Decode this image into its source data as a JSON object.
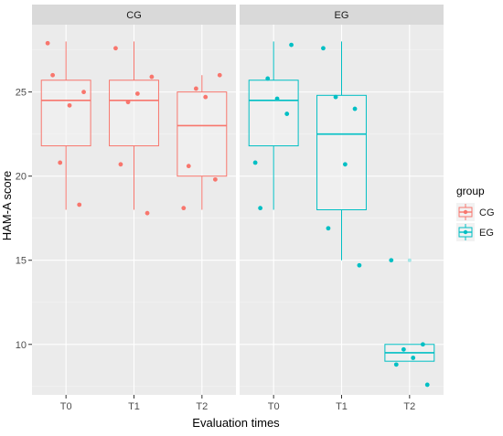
{
  "chart_data": {
    "type": "boxplot",
    "facets": [
      "CG",
      "EG"
    ],
    "categories": [
      "T0",
      "T1",
      "T2"
    ],
    "xlabel": "Evaluation times",
    "ylabel": "HAM-A score",
    "yticks": [
      10,
      15,
      20,
      25
    ],
    "ylim": [
      7.0,
      29.0
    ],
    "grid": true,
    "legend": {
      "title": "group",
      "position": "right",
      "entries": [
        {
          "label": "CG",
          "color": "#F8766D"
        },
        {
          "label": "EG",
          "color": "#00BFC4"
        }
      ]
    },
    "series": [
      {
        "name": "CG",
        "facet": "CG",
        "color": "#F8766D",
        "boxes": [
          {
            "category": "T0",
            "min": 18.0,
            "q1": 21.8,
            "median": 24.5,
            "q3": 25.7,
            "max": 28.0,
            "outliers": []
          },
          {
            "category": "T1",
            "min": 18.0,
            "q1": 21.8,
            "median": 24.5,
            "q3": 25.7,
            "max": 28.0,
            "outliers": []
          },
          {
            "category": "T2",
            "min": 18.0,
            "q1": 20.0,
            "median": 23.0,
            "q3": 25.0,
            "max": 26.0,
            "outliers": []
          }
        ],
        "points": [
          {
            "category": "T0",
            "values": [
              27.9,
              18.3,
              20.8,
              24.2,
              25.0,
              26.0
            ]
          },
          {
            "category": "T1",
            "values": [
              27.6,
              17.8,
              24.4,
              24.9,
              25.9,
              20.7
            ]
          },
          {
            "category": "T2",
            "values": [
              18.1,
              19.8,
              25.2,
              24.7,
              26.0,
              20.6
            ]
          }
        ]
      },
      {
        "name": "EG",
        "facet": "EG",
        "color": "#00BFC4",
        "boxes": [
          {
            "category": "T0",
            "min": 18.0,
            "q1": 21.8,
            "median": 24.5,
            "q3": 25.7,
            "max": 28.0,
            "outliers": []
          },
          {
            "category": "T1",
            "min": 15.0,
            "q1": 18.0,
            "median": 22.5,
            "q3": 24.8,
            "max": 28.0,
            "outliers": []
          },
          {
            "category": "T2",
            "min": 9.0,
            "q1": 9.0,
            "median": 9.5,
            "q3": 10.0,
            "max": 10.0,
            "outliers": [
              15.0
            ]
          }
        ],
        "points": [
          {
            "category": "T0",
            "values": [
              20.8,
              23.7,
              25.8,
              24.6,
              27.8,
              18.1
            ]
          },
          {
            "category": "T1",
            "values": [
              27.6,
              24.0,
              24.7,
              20.7,
              14.7,
              16.9
            ]
          },
          {
            "category": "T2",
            "values": [
              15.0,
              10.0,
              9.7,
              9.2,
              7.6,
              8.8
            ]
          }
        ]
      }
    ]
  }
}
